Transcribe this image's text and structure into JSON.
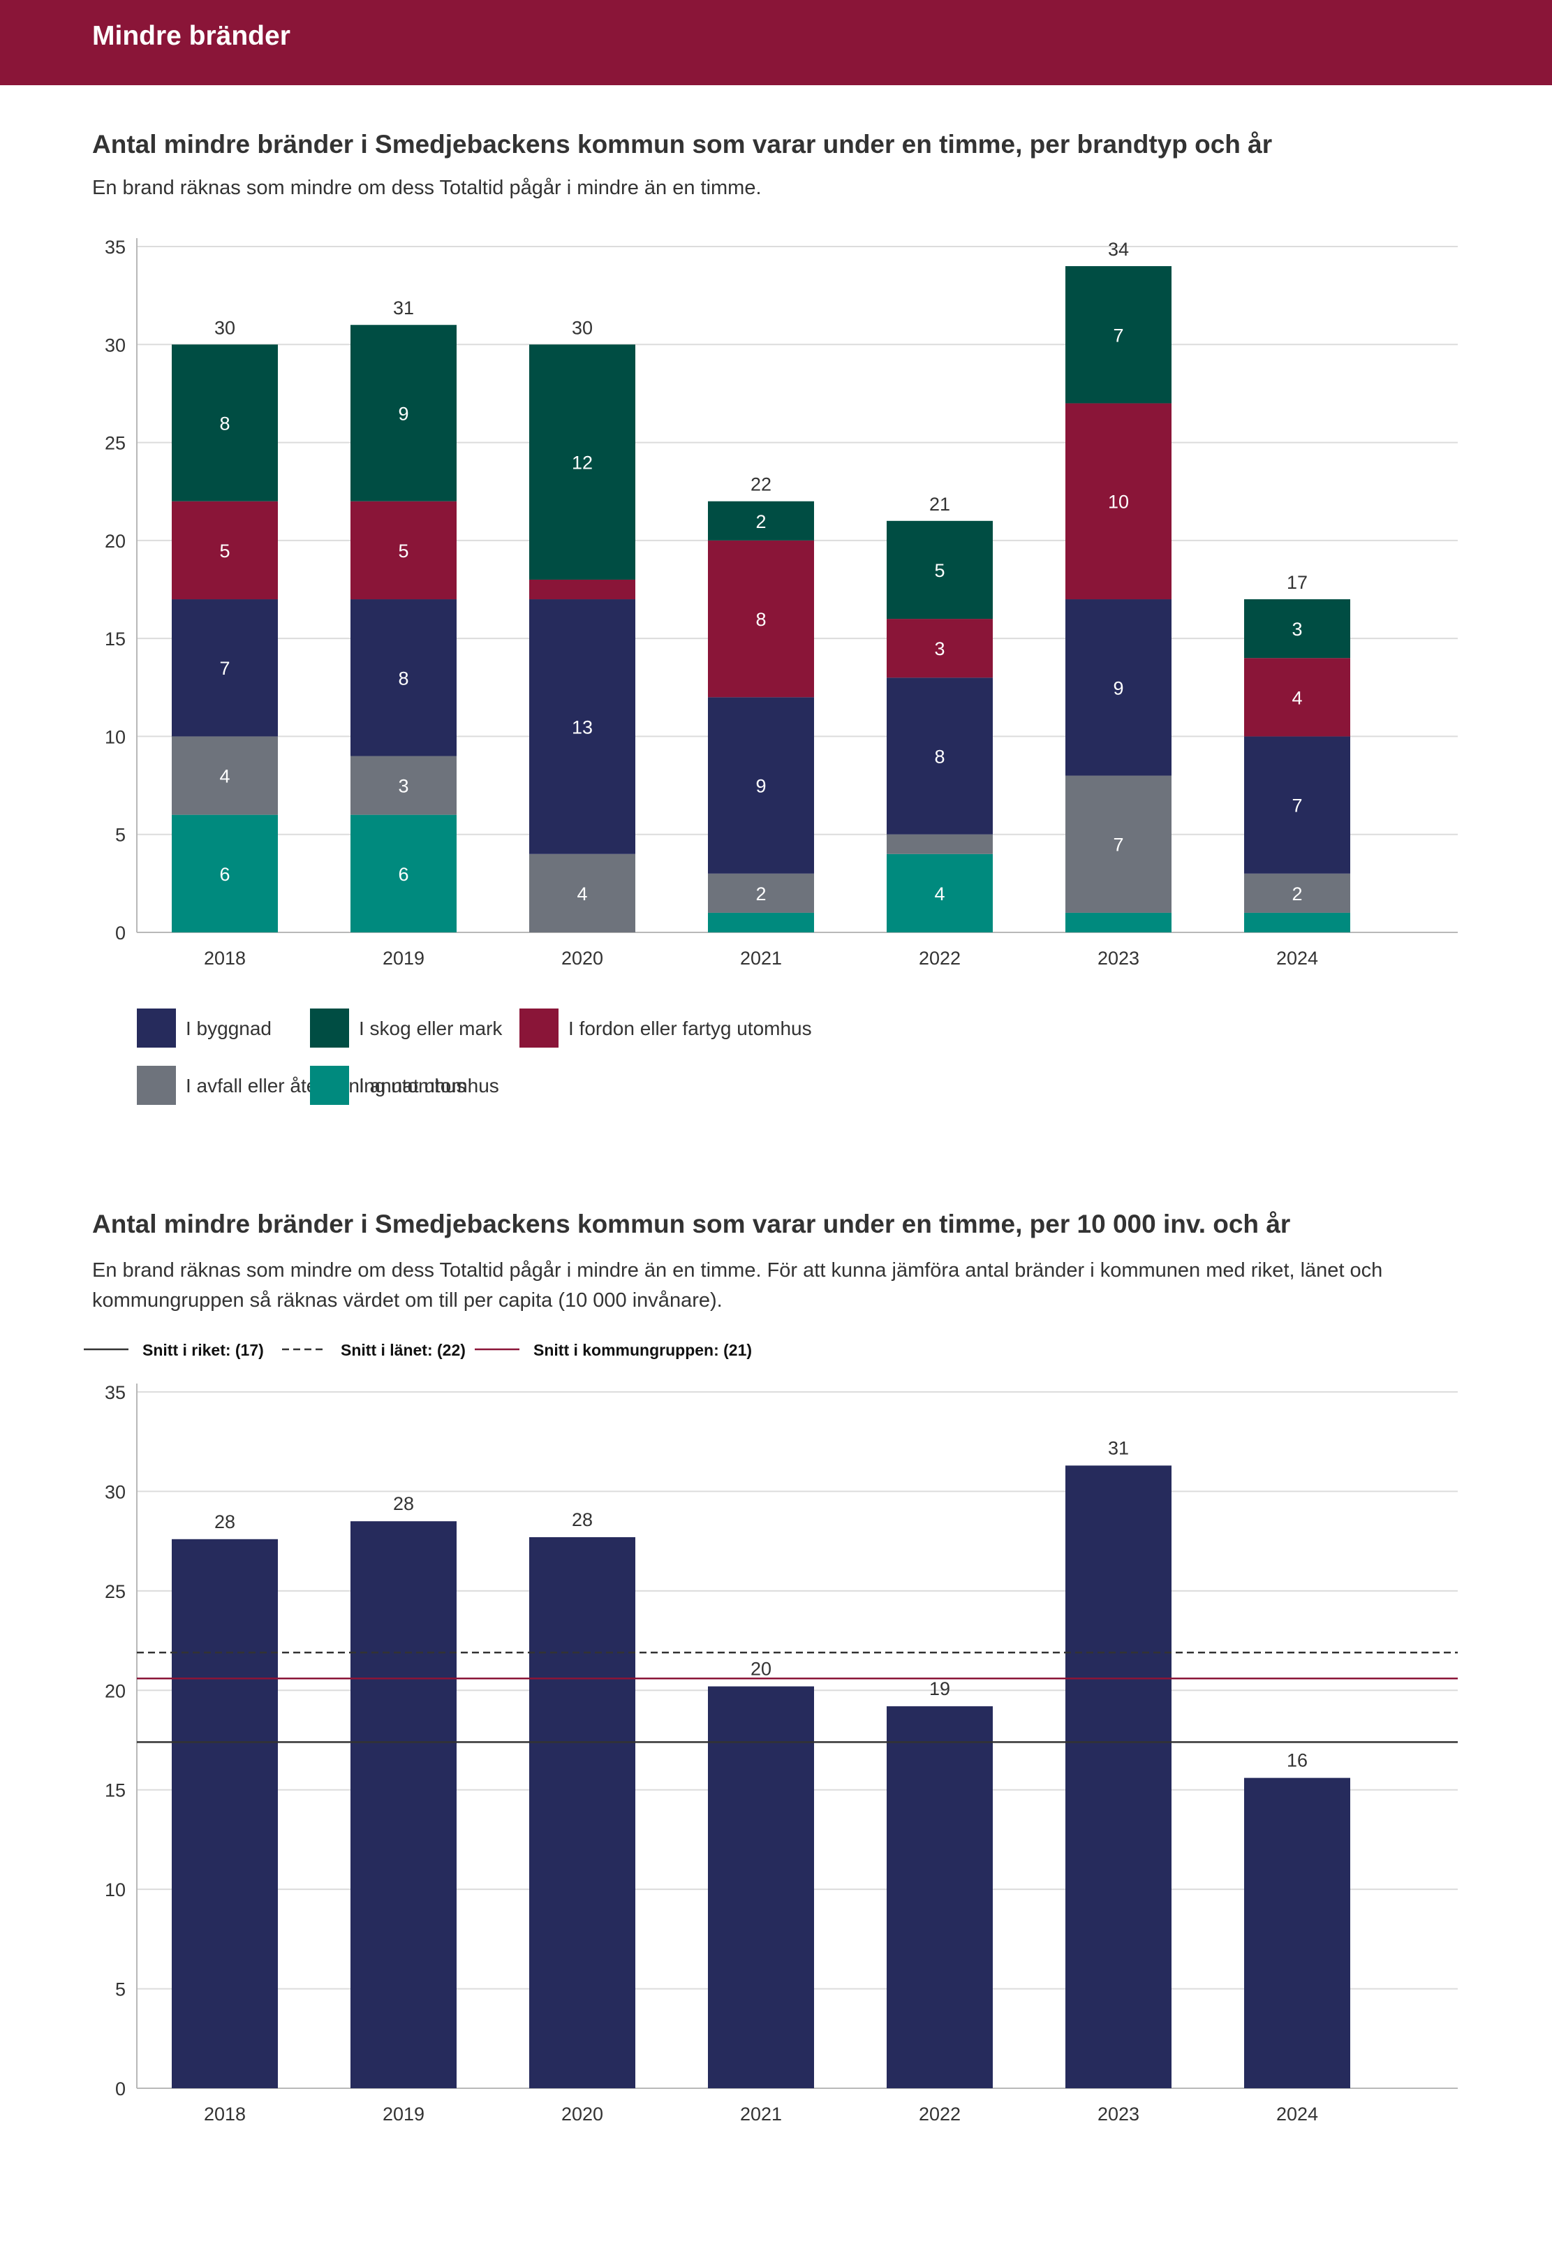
{
  "header": {
    "title": "Mindre bränder"
  },
  "colors": {
    "header": "#8a1538",
    "byggnad": "#262b5c",
    "skog": "#004d43",
    "fordon": "#8a1538",
    "avfall": "#6e737c",
    "annat": "#008a7e",
    "bar2": "#262b5c"
  },
  "chart1": {
    "title": "Antal mindre bränder i Smedjebackens kommun som varar under en timme, per brandtyp och år",
    "subtitle": "En brand räknas som mindre om dess Totaltid pågår i mindre än en timme."
  },
  "chart2": {
    "title": "Antal mindre bränder i Smedjebackens kommun som varar under en timme, per 10 000 inv. och år",
    "subtitle": "En brand räknas som mindre om dess Totaltid pågår i mindre än en timme. För att kunna jämföra antal bränder i kommunen med riket, länet och kommungruppen så räknas värdet om till per capita (10 000 invånare)."
  },
  "chart_data": [
    {
      "type": "bar",
      "stacked": true,
      "categories": [
        "2018",
        "2019",
        "2020",
        "2021",
        "2022",
        "2023",
        "2024"
      ],
      "ylim": [
        0,
        35
      ],
      "yticks": [
        0,
        5,
        10,
        15,
        20,
        25,
        30,
        35
      ],
      "grid": true,
      "legend_position": "bottom",
      "series": [
        {
          "name": "I annat utomhus",
          "color": "#008a7e",
          "values": [
            6,
            6,
            0,
            1,
            4,
            1,
            1
          ],
          "labels": [
            "6",
            "6",
            "",
            "",
            "4",
            "",
            ""
          ]
        },
        {
          "name": "I avfall eller återvinning utomhus",
          "color": "#6e737c",
          "values": [
            4,
            3,
            4,
            2,
            1,
            7,
            2
          ],
          "labels": [
            "4",
            "3",
            "4",
            "2",
            "",
            "7",
            "2"
          ]
        },
        {
          "name": "I byggnad",
          "color": "#262b5c",
          "values": [
            7,
            8,
            13,
            9,
            8,
            9,
            7
          ],
          "labels": [
            "7",
            "8",
            "13",
            "9",
            "8",
            "9",
            "7"
          ]
        },
        {
          "name": "I fordon eller fartyg utomhus",
          "color": "#8a1538",
          "values": [
            5,
            5,
            1,
            8,
            3,
            10,
            4
          ],
          "labels": [
            "5",
            "5",
            "",
            "8",
            "3",
            "10",
            "4"
          ]
        },
        {
          "name": "I skog eller mark",
          "color": "#004d43",
          "values": [
            8,
            9,
            12,
            2,
            5,
            7,
            3
          ],
          "labels": [
            "8",
            "9",
            "12",
            "2",
            "5",
            "7",
            "3"
          ]
        }
      ],
      "totals": [
        "30",
        "31",
        "30",
        "22",
        "21",
        "34",
        "17"
      ],
      "legend_order": [
        [
          "I byggnad",
          "I skog eller mark",
          "I fordon eller fartyg utomhus"
        ],
        [
          "I avfall eller återvinning utomhus",
          "I annat utomhus"
        ]
      ]
    },
    {
      "type": "bar",
      "categories": [
        "2018",
        "2019",
        "2020",
        "2021",
        "2022",
        "2023",
        "2024"
      ],
      "values": [
        27.6,
        28.5,
        27.7,
        20.2,
        19.2,
        31.3,
        15.6
      ],
      "value_labels": [
        "28",
        "28",
        "28",
        "20",
        "19",
        "31",
        "16"
      ],
      "ylim": [
        0,
        35
      ],
      "yticks": [
        0,
        5,
        10,
        15,
        20,
        25,
        30,
        35
      ],
      "grid": true,
      "legend_position": "top-left",
      "reference_lines": [
        {
          "label": "Snitt i riket: (17)",
          "value": 17.4,
          "style": "solid",
          "color": "#333333"
        },
        {
          "label": "Snitt i länet: (22)",
          "value": 21.9,
          "style": "dashed",
          "color": "#333333"
        },
        {
          "label": "Snitt i kommungruppen: (21)",
          "value": 20.6,
          "style": "solid",
          "color": "#8a1538"
        }
      ]
    }
  ]
}
